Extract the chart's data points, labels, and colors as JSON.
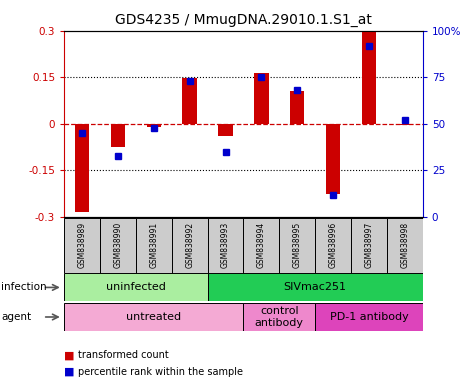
{
  "title": "GDS4235 / MmugDNA.29010.1.S1_at",
  "samples": [
    "GSM838989",
    "GSM838990",
    "GSM838991",
    "GSM838992",
    "GSM838993",
    "GSM838994",
    "GSM838995",
    "GSM838996",
    "GSM838997",
    "GSM838998"
  ],
  "red_bars": [
    -0.285,
    -0.075,
    -0.01,
    0.148,
    -0.04,
    0.165,
    0.105,
    -0.225,
    0.295,
    -0.005
  ],
  "blue_squares": [
    45,
    33,
    48,
    73,
    35,
    75,
    68,
    12,
    92,
    52
  ],
  "infection_groups": [
    {
      "label": "uninfected",
      "start": 0,
      "end": 4,
      "color": "#AAEEA0"
    },
    {
      "label": "SIVmac251",
      "start": 4,
      "end": 10,
      "color": "#22CC55"
    }
  ],
  "agent_groups": [
    {
      "label": "untreated",
      "start": 0,
      "end": 5,
      "color": "#F4AAD4"
    },
    {
      "label": "control\nantibody",
      "start": 5,
      "end": 7,
      "color": "#EE88CC"
    },
    {
      "label": "PD-1 antibody",
      "start": 7,
      "end": 10,
      "color": "#DD44BB"
    }
  ],
  "ylim": [
    -0.3,
    0.3
  ],
  "y2lim": [
    0,
    100
  ],
  "yticks_left": [
    -0.3,
    -0.15,
    0,
    0.15,
    0.3
  ],
  "yticks_right": [
    0,
    25,
    50,
    75,
    100
  ],
  "ytick_labels_right": [
    "0",
    "25",
    "50",
    "75",
    "100%"
  ],
  "red_color": "#CC0000",
  "blue_color": "#0000CC",
  "zero_line_color": "#CC0000",
  "sample_bg": "#CCCCCC",
  "bar_width": 0.4
}
